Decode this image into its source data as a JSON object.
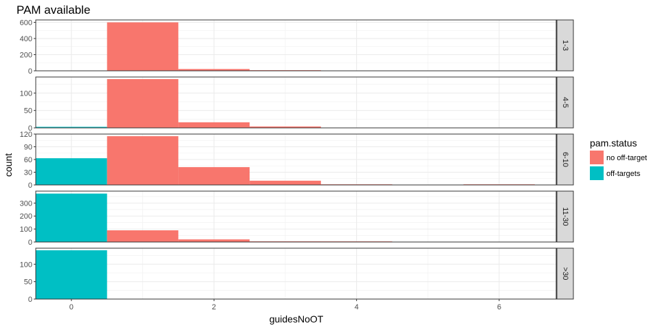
{
  "chart_data": {
    "type": "bar",
    "subtype": "faceted-histogram",
    "title": "PAM available",
    "xlabel": "guidesNoOT",
    "ylabel": "count",
    "xlim": [
      -0.5,
      6.8
    ],
    "x_ticks": [
      0,
      2,
      4,
      6
    ],
    "bin_width": 1,
    "grid": true,
    "legend": {
      "title": "pam.status",
      "position": "right",
      "entries": [
        {
          "name": "no off-target",
          "color": "#F8766D"
        },
        {
          "name": "off-targets",
          "color": "#00BFC4"
        }
      ]
    },
    "facets": [
      {
        "label": "1-3",
        "ylim": [
          0,
          630
        ],
        "y_ticks": [
          0,
          200,
          400,
          600
        ],
        "bars": [
          {
            "x": 1,
            "value": 600,
            "series": "no off-target"
          },
          {
            "x": 2,
            "value": 22,
            "series": "no off-target"
          },
          {
            "x": 3,
            "value": 2,
            "series": "no off-target"
          }
        ]
      },
      {
        "label": "4-5",
        "ylim": [
          0,
          146
        ],
        "y_ticks": [
          0,
          50,
          100
        ],
        "bars": [
          {
            "x": 0,
            "value": 3,
            "series": "off-targets"
          },
          {
            "x": 1,
            "value": 140,
            "series": "no off-target"
          },
          {
            "x": 2,
            "value": 16,
            "series": "no off-target"
          },
          {
            "x": 3,
            "value": 4,
            "series": "no off-target"
          }
        ]
      },
      {
        "label": "6-10",
        "ylim": [
          0,
          120
        ],
        "y_ticks": [
          0,
          30,
          60,
          90,
          120
        ],
        "bars": [
          {
            "x": 0,
            "value": 63,
            "series": "off-targets"
          },
          {
            "x": 1,
            "value": 115,
            "series": "no off-target"
          },
          {
            "x": 2,
            "value": 42,
            "series": "no off-target"
          },
          {
            "x": 3,
            "value": 10,
            "series": "no off-target"
          },
          {
            "x": 4,
            "value": 1,
            "series": "no off-target"
          },
          {
            "x": 6,
            "value": 1,
            "series": "no off-target"
          }
        ]
      },
      {
        "label": "11-30",
        "ylim": [
          0,
          392
        ],
        "y_ticks": [
          0,
          100,
          200,
          300
        ],
        "bars": [
          {
            "x": 0,
            "value": 373,
            "series": "off-targets"
          },
          {
            "x": 1,
            "value": 90,
            "series": "no off-target"
          },
          {
            "x": 2,
            "value": 20,
            "series": "no off-target"
          },
          {
            "x": 3,
            "value": 5,
            "series": "no off-target"
          },
          {
            "x": 4,
            "value": 3,
            "series": "no off-target"
          }
        ]
      },
      {
        "label": ">30",
        "ylim": [
          0,
          146
        ],
        "y_ticks": [
          0,
          50,
          100
        ],
        "bars": [
          {
            "x": 0,
            "value": 140,
            "series": "off-targets"
          }
        ]
      }
    ]
  }
}
